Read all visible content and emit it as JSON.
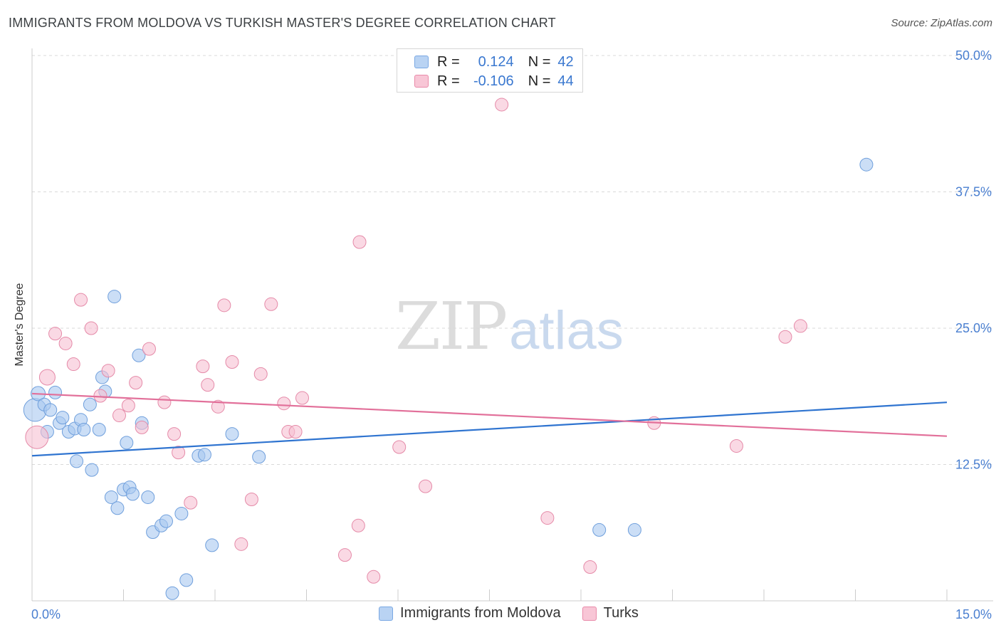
{
  "header": {
    "title": "IMMIGRANTS FROM MOLDOVA VS TURKISH MASTER'S DEGREE CORRELATION CHART",
    "source": "Source: ZipAtlas.com"
  },
  "watermark": {
    "zip": "ZIP",
    "atlas": "atlas"
  },
  "legend": {
    "r_label": "R =",
    "n_label": "N =",
    "rows": [
      {
        "r": "0.124",
        "n": "42",
        "color": "#b9d3f3",
        "border": "#7aa8e3"
      },
      {
        "r": "-0.106",
        "n": "44",
        "color": "#f8c6d6",
        "border": "#e98aa9"
      }
    ]
  },
  "bottom_legend": [
    {
      "label": "Immigrants from Moldova",
      "color": "#b9d3f3",
      "border": "#7aa8e3"
    },
    {
      "label": "Turks",
      "color": "#f8c6d6",
      "border": "#e98aa9"
    }
  ],
  "colors": {
    "series_blue_fill": "#a9c8f0",
    "series_blue_stroke": "#6f9fdc",
    "trend_blue": "#2f74d0",
    "series_pink_fill": "#f6c0d2",
    "series_pink_stroke": "#e58aa8",
    "trend_pink": "#e2709a",
    "grid": "#d9d9d9",
    "tick_text": "#4a7fd0"
  },
  "chart_data": {
    "type": "scatter",
    "title": "IMMIGRANTS FROM MOLDOVA VS TURKISH MASTER'S DEGREE CORRELATION CHART",
    "xlabel": "",
    "ylabel": "Master's Degree",
    "xlim": [
      0,
      15
    ],
    "ylim": [
      0,
      50
    ],
    "x_tick_labels": [
      "0.0%",
      "15.0%"
    ],
    "y_ticks": [
      12.5,
      25.0,
      37.5,
      50.0
    ],
    "y_tick_labels": [
      "12.5%",
      "25.0%",
      "37.5%",
      "50.0%"
    ],
    "grid": true,
    "legend_position": "top-center",
    "series": [
      {
        "name": "Immigrants from Moldova",
        "r": 0.124,
        "n": 42,
        "trend": [
          [
            0,
            13.3
          ],
          [
            15,
            18.2
          ]
        ],
        "points": [
          [
            0.05,
            17.5,
            16
          ],
          [
            0.1,
            19.0,
            10
          ],
          [
            0.2,
            18.0,
            9
          ],
          [
            0.25,
            15.5,
            9
          ],
          [
            0.3,
            17.5,
            9
          ],
          [
            0.38,
            19.1,
            9
          ],
          [
            0.45,
            16.3,
            9
          ],
          [
            0.5,
            16.8,
            9
          ],
          [
            0.6,
            15.5,
            9
          ],
          [
            0.7,
            15.8,
            9
          ],
          [
            0.73,
            12.8,
            9
          ],
          [
            0.8,
            16.6,
            9
          ],
          [
            0.85,
            15.7,
            9
          ],
          [
            0.95,
            18.0,
            9
          ],
          [
            0.98,
            12.0,
            9
          ],
          [
            1.1,
            15.7,
            9
          ],
          [
            1.15,
            20.5,
            9
          ],
          [
            1.2,
            19.2,
            9
          ],
          [
            1.3,
            9.5,
            9
          ],
          [
            1.35,
            27.9,
            9
          ],
          [
            1.4,
            8.5,
            9
          ],
          [
            1.5,
            10.2,
            9
          ],
          [
            1.55,
            14.5,
            9
          ],
          [
            1.6,
            10.4,
            9
          ],
          [
            1.65,
            9.8,
            9
          ],
          [
            1.75,
            22.5,
            9
          ],
          [
            1.8,
            16.3,
            9
          ],
          [
            1.9,
            9.5,
            9
          ],
          [
            1.98,
            6.3,
            9
          ],
          [
            2.12,
            6.9,
            9
          ],
          [
            2.2,
            7.3,
            9
          ],
          [
            2.3,
            0.7,
            9
          ],
          [
            2.45,
            8.0,
            9
          ],
          [
            2.53,
            1.9,
            9
          ],
          [
            2.73,
            13.3,
            9
          ],
          [
            2.83,
            13.4,
            9
          ],
          [
            2.95,
            5.1,
            9
          ],
          [
            3.28,
            15.3,
            9
          ],
          [
            3.72,
            13.2,
            9
          ],
          [
            9.3,
            6.5,
            9
          ],
          [
            9.88,
            6.5,
            9
          ],
          [
            13.68,
            40.0,
            9
          ]
        ]
      },
      {
        "name": "Turks",
        "r": -0.106,
        "n": 44,
        "trend": [
          [
            0,
            19.0
          ],
          [
            15,
            15.1
          ]
        ],
        "points": [
          [
            0.08,
            15.0,
            16
          ],
          [
            0.25,
            20.5,
            11
          ],
          [
            0.38,
            24.5,
            9
          ],
          [
            0.55,
            23.6,
            9
          ],
          [
            0.68,
            21.7,
            9
          ],
          [
            0.8,
            27.6,
            9
          ],
          [
            0.97,
            25.0,
            9
          ],
          [
            1.12,
            18.8,
            9
          ],
          [
            1.25,
            21.1,
            9
          ],
          [
            1.43,
            17.0,
            9
          ],
          [
            1.58,
            17.9,
            9
          ],
          [
            1.7,
            20.0,
            9
          ],
          [
            1.8,
            15.9,
            9
          ],
          [
            1.92,
            23.1,
            9
          ],
          [
            2.17,
            18.2,
            9
          ],
          [
            2.33,
            15.3,
            9
          ],
          [
            2.4,
            13.6,
            9
          ],
          [
            2.6,
            9.0,
            9
          ],
          [
            2.8,
            21.5,
            9
          ],
          [
            2.88,
            19.8,
            9
          ],
          [
            3.05,
            17.8,
            9
          ],
          [
            3.15,
            27.1,
            9
          ],
          [
            3.28,
            21.9,
            9
          ],
          [
            3.43,
            5.2,
            9
          ],
          [
            3.6,
            9.3,
            9
          ],
          [
            3.75,
            20.8,
            9
          ],
          [
            3.92,
            27.2,
            9
          ],
          [
            4.13,
            18.1,
            9
          ],
          [
            4.2,
            15.5,
            9
          ],
          [
            4.32,
            15.5,
            9
          ],
          [
            4.43,
            18.6,
            9
          ],
          [
            5.13,
            4.2,
            9
          ],
          [
            5.35,
            6.9,
            9
          ],
          [
            5.37,
            32.9,
            9
          ],
          [
            5.6,
            2.2,
            9
          ],
          [
            6.02,
            14.1,
            9
          ],
          [
            6.45,
            10.5,
            9
          ],
          [
            7.7,
            45.5,
            9
          ],
          [
            8.45,
            7.6,
            9
          ],
          [
            9.15,
            3.1,
            9
          ],
          [
            10.2,
            16.3,
            9
          ],
          [
            11.55,
            14.2,
            9
          ],
          [
            12.35,
            24.2,
            9
          ],
          [
            12.6,
            25.2,
            9
          ]
        ]
      }
    ]
  }
}
